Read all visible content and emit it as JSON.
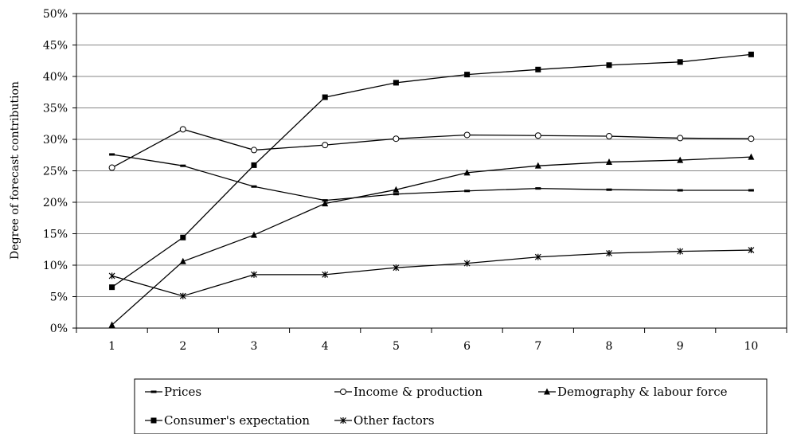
{
  "chart_data": {
    "type": "line",
    "title": "",
    "xlabel": "",
    "ylabel": "Degree of forecast contribution",
    "x": [
      1,
      2,
      3,
      4,
      5,
      6,
      7,
      8,
      9,
      10
    ],
    "x_tick_labels": [
      "1",
      "2",
      "3",
      "4",
      "5",
      "6",
      "7",
      "8",
      "9",
      "10"
    ],
    "ylim": [
      0,
      50
    ],
    "y_unit": "%",
    "y_tick_labels": [
      "0%",
      "5%",
      "10%",
      "15%",
      "20%",
      "25%",
      "30%",
      "35%",
      "40%",
      "45%",
      "50%"
    ],
    "grid": "horizontal",
    "legend_position": "bottom",
    "series": [
      {
        "name": "Prices",
        "marker": "dash",
        "values": [
          27.6,
          25.8,
          22.5,
          20.3,
          21.3,
          21.8,
          22.2,
          22.0,
          21.9,
          21.9
        ]
      },
      {
        "name": "Income & production",
        "marker": "open-circle",
        "values": [
          25.5,
          31.6,
          28.3,
          29.1,
          30.1,
          30.7,
          30.6,
          30.5,
          30.2,
          30.1
        ]
      },
      {
        "name": "Demography & labour force",
        "marker": "triangle",
        "values": [
          0.5,
          10.6,
          14.8,
          19.8,
          22.0,
          24.7,
          25.8,
          26.4,
          26.7,
          27.2
        ]
      },
      {
        "name": "Consumer's expectation",
        "marker": "square",
        "values": [
          6.5,
          14.4,
          25.9,
          36.7,
          39.0,
          40.3,
          41.1,
          41.8,
          42.3,
          43.5
        ]
      },
      {
        "name": "Other factors",
        "marker": "asterisk",
        "values": [
          8.3,
          5.1,
          8.5,
          8.5,
          9.6,
          10.3,
          11.3,
          11.9,
          12.2,
          12.4
        ]
      }
    ],
    "colors": {
      "line": "#000000",
      "grid": "#868686",
      "background": "#ffffff"
    }
  }
}
